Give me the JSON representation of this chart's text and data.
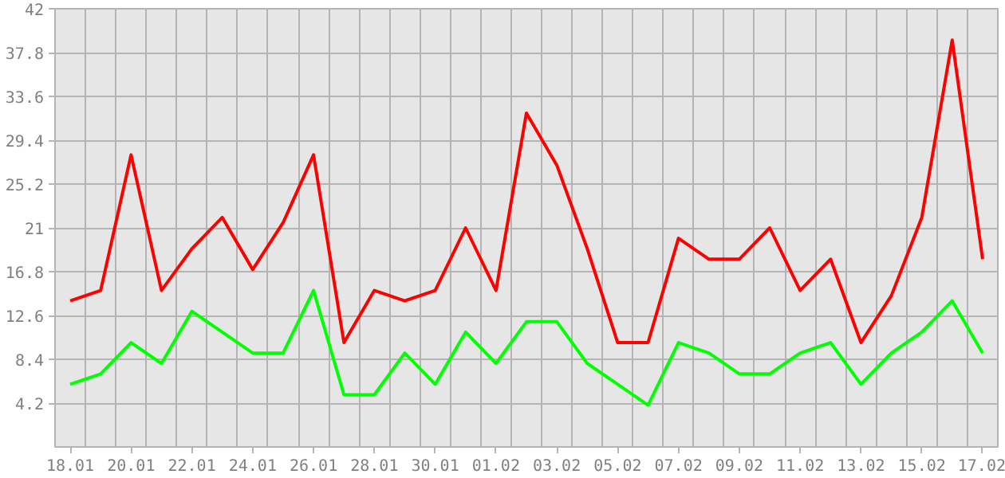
{
  "chart_data": {
    "type": "line",
    "categories": [
      "18.01",
      null,
      "20.01",
      null,
      "22.01",
      null,
      "24.01",
      null,
      "26.01",
      null,
      "28.01",
      null,
      "30.01",
      null,
      "01.02",
      null,
      "03.02",
      null,
      "05.02",
      null,
      "07.02",
      null,
      "09.02",
      null,
      "11.02",
      null,
      "13.02",
      null,
      "15.02",
      null,
      "17.02"
    ],
    "series": [
      {
        "color": "#ff0000",
        "values": [
          14,
          15,
          28,
          15,
          19,
          22,
          17,
          21.5,
          28,
          10,
          15,
          14,
          15,
          21,
          15,
          32,
          27,
          19,
          10,
          10,
          20,
          18,
          18,
          21,
          15,
          18,
          10,
          14.5,
          22,
          39,
          18
        ]
      },
      {
        "color": "#00ff00",
        "values": [
          6,
          7,
          10,
          8,
          13,
          11,
          9,
          9,
          15,
          5,
          5,
          9,
          6,
          11,
          8,
          12,
          12,
          8,
          6,
          4,
          10,
          9,
          7,
          7,
          9,
          10,
          6,
          9,
          11,
          14,
          9
        ]
      }
    ],
    "ylim": [
      0,
      42
    ],
    "yticks": [
      4.2,
      8.4,
      12.6,
      16.8,
      21,
      25.2,
      29.4,
      33.6,
      37.8,
      42
    ],
    "grid": true,
    "marker": "none",
    "line_style": "solid"
  }
}
